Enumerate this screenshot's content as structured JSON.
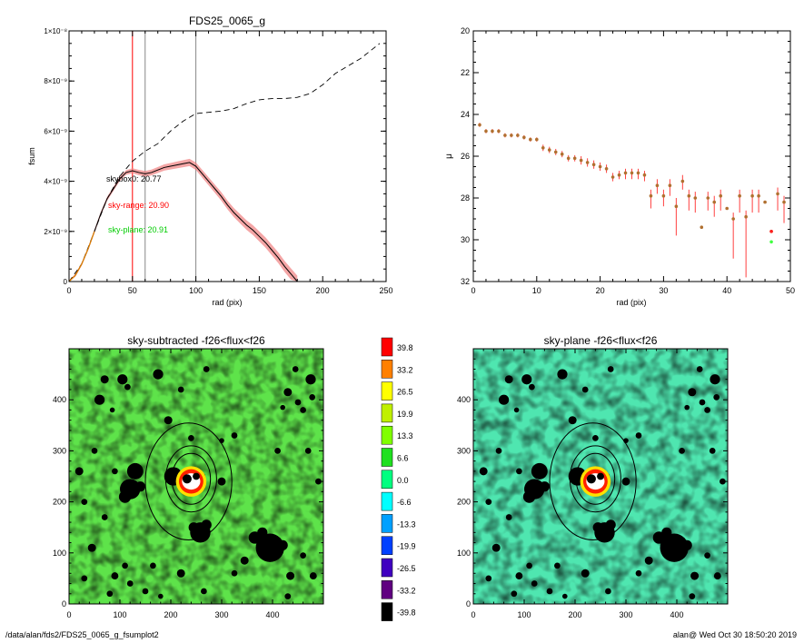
{
  "page": {
    "footer_left": "/data/alan/fds2/FDS25_0065_g_fsumplot2",
    "footer_right": "alan@  Wed Oct 30 18:50:20 2019"
  },
  "colors": {
    "profile": "#000000",
    "band": "#f08080",
    "model": "#000000",
    "skybox_text": "#000000",
    "skyrange_text": "#ff0000",
    "skyplane_text": "#00cc00",
    "vline_red": "#ff0000",
    "vline_gray": "#888888"
  },
  "chart_data": [
    {
      "type": "line",
      "title": "FDS25_0065_g",
      "xlabel": "rad (pix)",
      "ylabel": "fsum",
      "xlim": [
        0,
        250
      ],
      "ylim": [
        0,
        1e-08
      ],
      "xticks": [
        "0",
        "50",
        "100",
        "150",
        "200",
        "250"
      ],
      "yticks": [
        "0",
        "2×10⁻⁹",
        "4×10⁻⁹",
        "6×10⁻⁹",
        "8×10⁻⁹",
        "1×10⁻⁸"
      ],
      "vlines": [
        {
          "x": 50,
          "color": "red"
        },
        {
          "x": 60,
          "color": "gray"
        },
        {
          "x": 100,
          "color": "gray"
        }
      ],
      "annotations": [
        "skybox0: 20.77",
        "sky-range: 20.90",
        "sky-plane: 20.91"
      ],
      "series": [
        {
          "style": "solid",
          "x": [
            0,
            5,
            10,
            15,
            20,
            25,
            30,
            35,
            40,
            45,
            50,
            55,
            60,
            65,
            70,
            75,
            80,
            85,
            90,
            95,
            100,
            105,
            110,
            115,
            120,
            125,
            130,
            135,
            140,
            145,
            150,
            155,
            160,
            165,
            170,
            175,
            180
          ],
          "y": [
            0,
            2.5e-10,
            7e-10,
            1.3e-09,
            2e-09,
            2.7e-09,
            3.3e-09,
            3.7e-09,
            4.1e-09,
            4.35e-09,
            4.42e-09,
            4.35e-09,
            4.3e-09,
            4.35e-09,
            4.45e-09,
            4.55e-09,
            4.6e-09,
            4.65e-09,
            4.7e-09,
            4.75e-09,
            4.6e-09,
            4.3e-09,
            4e-09,
            3.7e-09,
            3.4e-09,
            3.05e-09,
            2.75e-09,
            2.5e-09,
            2.25e-09,
            2.05e-09,
            1.8e-09,
            1.55e-09,
            1.25e-09,
            9.5e-10,
            6e-10,
            3e-10,
            0
          ]
        },
        {
          "style": "dashed",
          "x": [
            0,
            10,
            20,
            30,
            40,
            50,
            60,
            70,
            80,
            90,
            100,
            110,
            120,
            130,
            140,
            150,
            160,
            170,
            180,
            190,
            200,
            210,
            220,
            230,
            240,
            245
          ],
          "y": [
            0,
            7e-10,
            2e-09,
            3.3e-09,
            4.2e-09,
            4.8e-09,
            5.2e-09,
            5.5e-09,
            6e-09,
            6.4e-09,
            6.7e-09,
            6.75e-09,
            6.8e-09,
            6.9e-09,
            7.1e-09,
            7.25e-09,
            7.3e-09,
            7.3e-09,
            7.35e-09,
            7.5e-09,
            7.85e-09,
            8.3e-09,
            8.6e-09,
            8.9e-09,
            9.3e-09,
            9.5e-09
          ]
        }
      ]
    },
    {
      "type": "scatter",
      "xlabel": "rad (pix)",
      "ylabel": "μ",
      "xlim": [
        0,
        50
      ],
      "ylim": [
        32,
        20
      ],
      "xticks": [
        "0",
        "10",
        "20",
        "30",
        "40",
        "50"
      ],
      "yticks": [
        "20",
        "22",
        "24",
        "26",
        "28",
        "30",
        "32"
      ],
      "points": {
        "x": [
          1,
          2,
          3,
          4,
          5,
          6,
          7,
          8,
          9,
          10,
          11,
          12,
          13,
          14,
          15,
          16,
          17,
          18,
          19,
          20,
          21,
          22,
          23,
          24,
          25,
          26,
          27,
          28,
          29,
          30,
          31,
          32,
          33,
          34,
          35,
          36,
          37,
          38,
          39,
          40,
          41,
          42,
          43,
          44,
          45,
          46,
          47,
          48,
          49
        ],
        "y": [
          24.5,
          24.8,
          24.8,
          24.8,
          25.0,
          25.0,
          25.0,
          25.1,
          25.2,
          25.2,
          25.6,
          25.7,
          25.8,
          25.9,
          26.1,
          26.1,
          26.2,
          26.3,
          26.4,
          26.5,
          26.6,
          27.0,
          26.9,
          26.8,
          26.8,
          26.8,
          26.9,
          27.9,
          27.4,
          27.9,
          27.4,
          28.4,
          27.2,
          27.9,
          28.0,
          29.4,
          28.0,
          28.2,
          27.9,
          28.5,
          29.0,
          27.9,
          28.9,
          27.9,
          27.9,
          28.2,
          29.6,
          27.8,
          28.2
        ],
        "err_lo": [
          0.1,
          0.1,
          0.1,
          0.1,
          0.1,
          0.1,
          0.1,
          0.1,
          0.1,
          0.1,
          0.15,
          0.15,
          0.15,
          0.15,
          0.15,
          0.15,
          0.2,
          0.2,
          0.2,
          0.2,
          0.2,
          0.2,
          0.2,
          0.3,
          0.3,
          0.3,
          0.3,
          0.6,
          0.4,
          0.5,
          0.5,
          1.4,
          0.4,
          0.7,
          0.7,
          0,
          0.6,
          0.7,
          0.7,
          0,
          1.9,
          0.8,
          2.9,
          0.8,
          0.8,
          0,
          0,
          0.8,
          1.0
        ],
        "err_hi": [
          0.1,
          0.1,
          0.1,
          0.1,
          0.1,
          0.1,
          0.1,
          0.1,
          0.1,
          0.1,
          0.15,
          0.15,
          0.15,
          0.15,
          0.15,
          0.15,
          0.2,
          0.2,
          0.2,
          0.2,
          0.2,
          0.2,
          0.2,
          0.2,
          0.2,
          0.2,
          0.2,
          0.3,
          0.3,
          0.3,
          0.3,
          0.4,
          0.3,
          0.3,
          0.3,
          0,
          0.3,
          0.3,
          0.3,
          0,
          0.3,
          0.3,
          0.3,
          0.3,
          0.3,
          0,
          0,
          0.3,
          0.3
        ],
        "extra_markers": [
          {
            "x": 47,
            "y": 29.6,
            "color": "red"
          },
          {
            "x": 47,
            "y": 30.1,
            "color": "lime"
          }
        ]
      }
    },
    {
      "type": "heatmap",
      "title": "sky-subtracted -f26<flux<f26",
      "xlim": [
        0,
        500
      ],
      "ylim": [
        0,
        500
      ],
      "xticks": [
        "0",
        "100",
        "200",
        "300",
        "400"
      ],
      "yticks": [
        "0",
        "100",
        "200",
        "300",
        "400"
      ]
    },
    {
      "type": "heatmap",
      "title": "sky-plane -f26<flux<f26",
      "xlim": [
        0,
        500
      ],
      "ylim": [
        0,
        500
      ],
      "xticks": [
        "0",
        "100",
        "200",
        "300",
        "400"
      ],
      "yticks": [
        "0",
        "100",
        "200",
        "300",
        "400"
      ]
    }
  ],
  "colorbar": {
    "labels": [
      "39.8",
      "33.2",
      "26.5",
      "19.9",
      "13.3",
      "6.6",
      "0.0",
      "-6.6",
      "-13.3",
      "-19.9",
      "-26.5",
      "-33.2",
      "-39.8"
    ],
    "colors": [
      "#ff0000",
      "#ff8000",
      "#ffff00",
      "#c0f000",
      "#80ff00",
      "#20e020",
      "#00ff80",
      "#00ffff",
      "#00a0ff",
      "#0040ff",
      "#4000c0",
      "#600080",
      "#000000"
    ]
  },
  "masks": [
    [
      205,
      250,
      18
    ],
    [
      233,
      245,
      12
    ],
    [
      260,
      250,
      8
    ],
    [
      300,
      240,
      8
    ],
    [
      130,
      260,
      16
    ],
    [
      120,
      225,
      20
    ],
    [
      110,
      210,
      12
    ],
    [
      140,
      230,
      10
    ],
    [
      258,
      140,
      20
    ],
    [
      245,
      150,
      10
    ],
    [
      270,
      155,
      10
    ],
    [
      395,
      110,
      28
    ],
    [
      365,
      130,
      12
    ],
    [
      380,
      140,
      10
    ],
    [
      420,
      115,
      10
    ],
    [
      345,
      85,
      8
    ],
    [
      435,
      55,
      8
    ],
    [
      325,
      60,
      6
    ],
    [
      60,
      400,
      10
    ],
    [
      70,
      440,
      8
    ],
    [
      105,
      440,
      10
    ],
    [
      115,
      425,
      6
    ],
    [
      175,
      450,
      10
    ],
    [
      195,
      360,
      8
    ],
    [
      270,
      460,
      6
    ],
    [
      445,
      460,
      6
    ],
    [
      475,
      440,
      10
    ],
    [
      478,
      405,
      6
    ],
    [
      430,
      415,
      8
    ],
    [
      450,
      395,
      6
    ],
    [
      420,
      385,
      5
    ],
    [
      460,
      380,
      6
    ],
    [
      325,
      330,
      6
    ],
    [
      300,
      320,
      5
    ],
    [
      85,
      380,
      5
    ],
    [
      220,
      420,
      6
    ],
    [
      240,
      325,
      6
    ],
    [
      45,
      110,
      8
    ],
    [
      30,
      50,
      6
    ],
    [
      90,
      55,
      7
    ],
    [
      120,
      40,
      6
    ],
    [
      80,
      20,
      6
    ],
    [
      110,
      75,
      6
    ],
    [
      150,
      25,
      6
    ],
    [
      165,
      75,
      6
    ],
    [
      220,
      60,
      8
    ],
    [
      265,
      25,
      6
    ],
    [
      180,
      15,
      5
    ],
    [
      430,
      15,
      6
    ],
    [
      480,
      55,
      7
    ],
    [
      460,
      95,
      6
    ],
    [
      30,
      200,
      6
    ],
    [
      70,
      170,
      6
    ],
    [
      90,
      260,
      6
    ],
    [
      20,
      260,
      8
    ],
    [
      410,
      300,
      6
    ],
    [
      470,
      300,
      6
    ],
    [
      490,
      240,
      6
    ],
    [
      50,
      300,
      6
    ]
  ],
  "ellipses": [
    {
      "cx": 235,
      "cy": 240,
      "rx": 85,
      "ry": 115
    },
    {
      "cx": 240,
      "cy": 245,
      "rx": 50,
      "ry": 65
    },
    {
      "cx": 240,
      "cy": 245,
      "rx": 38,
      "ry": 50
    }
  ]
}
